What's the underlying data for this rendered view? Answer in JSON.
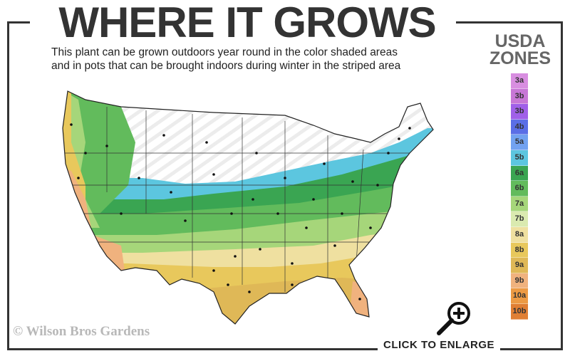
{
  "header": {
    "title": "WHERE IT GROWS",
    "subtitle_line1": "This plant can be grown outdoors year round in the color shaded areas",
    "subtitle_line2": "and in pots that can be brought indoors during winter in the striped area"
  },
  "legend": {
    "title_line1": "USDA",
    "title_line2": "ZONES",
    "zones": [
      {
        "label": "3a",
        "color": "#d88ee0"
      },
      {
        "label": "3b",
        "color": "#c777d6"
      },
      {
        "label": "3b",
        "color": "#a060e8"
      },
      {
        "label": "4b",
        "color": "#5a6ee6"
      },
      {
        "label": "5a",
        "color": "#72a2f0"
      },
      {
        "label": "5b",
        "color": "#5cc6df"
      },
      {
        "label": "6a",
        "color": "#3aa552"
      },
      {
        "label": "6b",
        "color": "#62bb5c"
      },
      {
        "label": "7a",
        "color": "#a6d67a"
      },
      {
        "label": "7b",
        "color": "#daeab0"
      },
      {
        "label": "8a",
        "color": "#efe0a0"
      },
      {
        "label": "8b",
        "color": "#e8c85c"
      },
      {
        "label": "9a",
        "color": "#dfb857"
      },
      {
        "label": "9b",
        "color": "#f0b27e"
      },
      {
        "label": "10a",
        "color": "#ec9a44"
      },
      {
        "label": "10b",
        "color": "#e07f34"
      }
    ]
  },
  "map": {
    "shaded_zones": [
      "6a",
      "6b",
      "7a",
      "7b",
      "8a",
      "8b",
      "9a",
      "9b"
    ],
    "striped_zones": [
      "5b"
    ]
  },
  "watermark": "© Wilson Bros Gardens",
  "enlarge": {
    "label": "CLICK TO ENLARGE",
    "icon": "zoom-in-icon"
  }
}
